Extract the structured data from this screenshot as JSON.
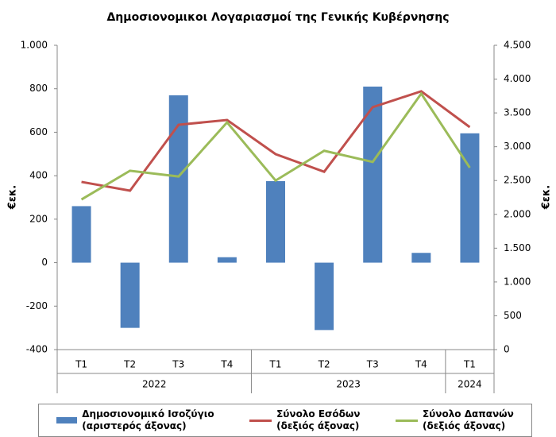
{
  "chart_data": {
    "type": "bar-line",
    "title": "Δημοσιονομικοι Λογαριασμοί της Γενικής Κυβέρνησης",
    "ylabel": "€εκ.",
    "y2label": "€εκ.",
    "groups": [
      {
        "name": "2022",
        "categories": [
          "T1",
          "T2",
          "T3",
          "T4"
        ]
      },
      {
        "name": "2023",
        "categories": [
          "T1",
          "T2",
          "T3",
          "T4"
        ]
      },
      {
        "name": "2024",
        "categories": [
          "T1"
        ]
      }
    ],
    "series": [
      {
        "name": "Δημοσιονομικό Ισοζύγιο\n(αριστερός άξονας)",
        "type": "bar",
        "axis": "y",
        "color": "#4f81bd",
        "values": [
          260,
          -300,
          770,
          25,
          375,
          -310,
          810,
          45,
          595
        ]
      },
      {
        "name": "Σύνολο Εσόδων\n(δεξιός άξονας)",
        "type": "line",
        "axis": "y2",
        "color": "#c0504d",
        "values": [
          2480,
          2350,
          3325,
          3395,
          2890,
          2630,
          3585,
          3820,
          3290
        ]
      },
      {
        "name": "Σύνολο Δαπανών\n(δεξιός άξονας)",
        "type": "line",
        "axis": "y2",
        "color": "#9bbb59",
        "values": [
          2220,
          2645,
          2560,
          3360,
          2500,
          2940,
          2775,
          3785,
          2690
        ]
      }
    ],
    "ylim": [
      -400,
      1000
    ],
    "yticks": [
      -400,
      -200,
      0,
      200,
      400,
      600,
      800,
      {
        "value": 1000,
        "label": "1.000"
      }
    ],
    "y2lim": [
      0,
      4500
    ],
    "y2ticks": [
      0,
      500,
      {
        "value": 1000,
        "label": "1.000"
      },
      {
        "value": 1500,
        "label": "1.500"
      },
      {
        "value": 2000,
        "label": "2.000"
      },
      {
        "value": 2500,
        "label": "2.500"
      },
      {
        "value": 3000,
        "label": "3.000"
      },
      {
        "value": 3500,
        "label": "3.500"
      },
      {
        "value": 4000,
        "label": "4.000"
      },
      {
        "value": 4500,
        "label": "4.500"
      }
    ],
    "grid": false
  }
}
